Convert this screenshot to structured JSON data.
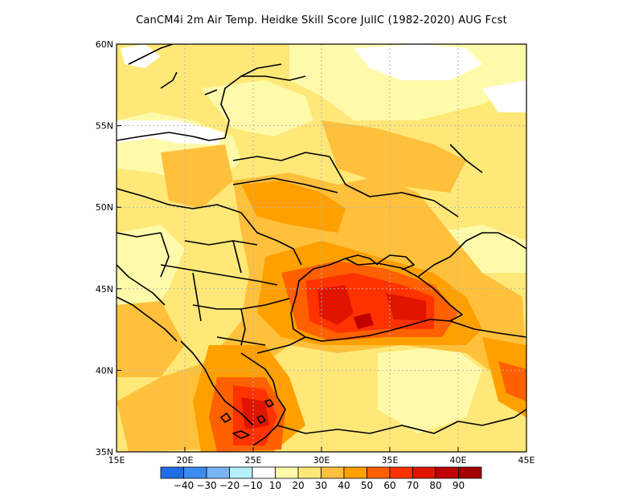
{
  "title": "CanCM4i  2m Air Temp. Heidke Skill Score JulIC (1982-2020) AUG Fcst",
  "map": {
    "lon_range": [
      15,
      45
    ],
    "lat_range": [
      35,
      60
    ],
    "lon_ticks": [
      "15E",
      "20E",
      "25E",
      "30E",
      "35E",
      "40E",
      "45E"
    ],
    "lat_ticks": [
      "35N",
      "40N",
      "45N",
      "50N",
      "55N",
      "60N"
    ],
    "gridlines": "dotted"
  },
  "colorbar": {
    "labels": [
      "-40",
      "-30",
      "-20",
      "-10",
      "10",
      "20",
      "30",
      "40",
      "50",
      "60",
      "70",
      "80",
      "90"
    ],
    "colors": [
      "#1e6ee6",
      "#3c8cf0",
      "#78b4f5",
      "#b4f0fa",
      "#ffffff",
      "#fffaaa",
      "#ffe878",
      "#ffc03c",
      "#ffa000",
      "#ff6000",
      "#ff3200",
      "#e11400",
      "#c00000",
      "#a50000"
    ]
  }
}
